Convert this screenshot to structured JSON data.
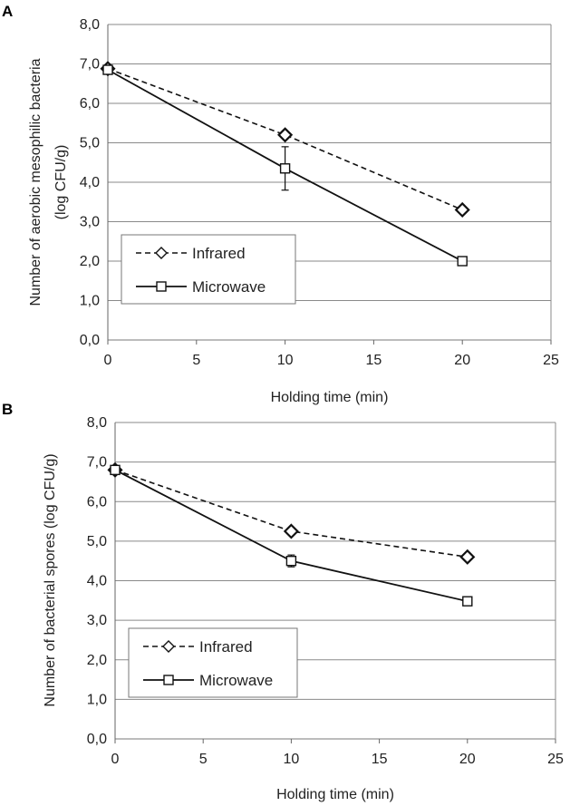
{
  "chart_data": [
    {
      "type": "line",
      "panel": "A",
      "title": "",
      "xlabel": "Holding time (min)",
      "ylabel_line1": "Number of aerobic mesophilic bacteria",
      "ylabel_line2": "(log CFU/g)",
      "xlim": [
        0,
        25
      ],
      "ylim": [
        0,
        8
      ],
      "xticks": [
        0,
        5,
        10,
        15,
        20,
        25
      ],
      "xtick_labels": [
        "0",
        "5",
        "10",
        "15",
        "20",
        "25"
      ],
      "yticks": [
        0,
        1,
        2,
        3,
        4,
        5,
        6,
        7,
        8
      ],
      "ytick_labels": [
        "0,0",
        "1,0",
        "2,0",
        "3,0",
        "4,0",
        "5,0",
        "6,0",
        "7,0",
        "8,0"
      ],
      "grid": true,
      "legend_position": "lower-left",
      "series": [
        {
          "name": "Infrared",
          "style": "dashed",
          "marker": "diamond",
          "x": [
            0,
            10,
            20
          ],
          "values": [
            6.88,
            5.2,
            3.3
          ],
          "errors": [
            0,
            0.05,
            0.05
          ]
        },
        {
          "name": "Microwave",
          "style": "solid",
          "marker": "square",
          "x": [
            0,
            10,
            20
          ],
          "values": [
            6.85,
            4.35,
            2.0
          ],
          "errors": [
            0.05,
            0.55,
            0
          ]
        }
      ]
    },
    {
      "type": "line",
      "panel": "B",
      "title": "",
      "xlabel": "Holding time (min)",
      "ylabel_line1": "Number of bacterial spores  (log CFU/g)",
      "ylabel_line2": "",
      "xlim": [
        0,
        25
      ],
      "ylim": [
        0,
        8
      ],
      "xticks": [
        0,
        5,
        10,
        15,
        20,
        25
      ],
      "xtick_labels": [
        "0",
        "5",
        "10",
        "15",
        "20",
        "25"
      ],
      "yticks": [
        0,
        1,
        2,
        3,
        4,
        5,
        6,
        7,
        8
      ],
      "ytick_labels": [
        "0,0",
        "1,0",
        "2,0",
        "3,0",
        "4,0",
        "5,0",
        "6,0",
        "7,0",
        "8,0"
      ],
      "grid": true,
      "legend_position": "lower-left",
      "series": [
        {
          "name": "Infrared",
          "style": "dashed",
          "marker": "diamond",
          "x": [
            0,
            10,
            20
          ],
          "values": [
            6.8,
            5.25,
            4.6
          ],
          "errors": [
            0,
            0.05,
            0.05
          ]
        },
        {
          "name": "Microwave",
          "style": "solid",
          "marker": "square",
          "x": [
            0,
            10,
            20
          ],
          "values": [
            6.8,
            4.5,
            3.48
          ],
          "errors": [
            0.05,
            0.15,
            0
          ]
        }
      ]
    }
  ]
}
